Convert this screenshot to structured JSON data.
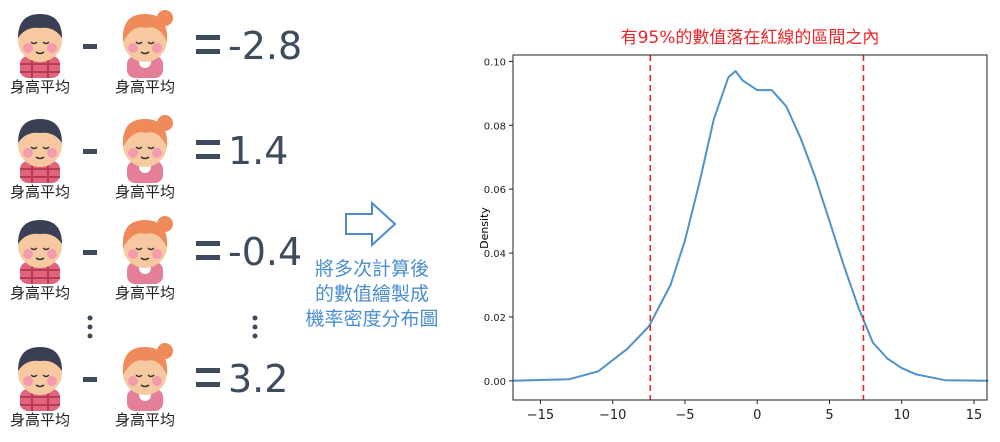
{
  "rows": [
    {
      "left_label": "身高平均",
      "right_label": "身高平均",
      "result": -2.8
    },
    {
      "left_label": "身高平均",
      "right_label": "身高平均",
      "result": 1.4
    },
    {
      "left_label": "身高平均",
      "right_label": "身高平均",
      "result": -0.4
    },
    {
      "left_label": "身高平均",
      "right_label": "身高平均",
      "result": 3.2
    }
  ],
  "caption": [
    "將多次計算後",
    "的數值繪製成",
    "機率密度分布圖"
  ],
  "chart_data": {
    "type": "line",
    "title": "有95%的數值落在紅線的區間之內",
    "y_label": "Density",
    "x": [
      -17,
      -13,
      -11,
      -9,
      -7.5,
      -6,
      -5,
      -4,
      -3,
      -2,
      -1.5,
      -1,
      0,
      1,
      2,
      3,
      4,
      5,
      6,
      7,
      8,
      9,
      10,
      11,
      13,
      16
    ],
    "series": [
      {
        "name": "Density",
        "color": "#4f93c8",
        "values": [
          0,
          0.0005,
          0.003,
          0.01,
          0.017,
          0.03,
          0.044,
          0.062,
          0.082,
          0.095,
          0.097,
          0.094,
          0.091,
          0.091,
          0.086,
          0.076,
          0.064,
          0.05,
          0.036,
          0.023,
          0.012,
          0.007,
          0.004,
          0.002,
          0.0002,
          0
        ]
      }
    ],
    "vlines": [
      -7.4,
      7.35
    ],
    "vline_color": "#e8262a",
    "xlim": [
      -16.9,
      15.9
    ],
    "ylim": [
      -0.006,
      0.102
    ],
    "xticks": [
      {
        "value": -15,
        "label": "−15"
      },
      {
        "value": -10,
        "label": "−10"
      },
      {
        "value": -5,
        "label": "−5"
      },
      0,
      5,
      10,
      15
    ],
    "yticks": [
      {
        "value": 0,
        "label": "0.00"
      },
      {
        "value": 0.02,
        "label": "0.02"
      },
      {
        "value": 0.04,
        "label": "0.04"
      },
      {
        "value": 0.06,
        "label": "0.06"
      },
      {
        "value": 0.08,
        "label": "0.08"
      },
      {
        "value": 0.1,
        "label": "0.10"
      }
    ]
  }
}
